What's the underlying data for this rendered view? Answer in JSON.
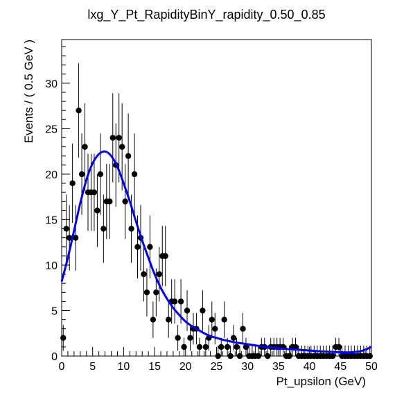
{
  "chart_data": {
    "type": "scatter",
    "title": "lxg_Y_Pt_RapidityBinY_rapidity_0.50_0.85",
    "xlabel": "Pt_upsilon (GeV)",
    "ylabel": "Events / ( 0.5 GeV )",
    "xlim": [
      0,
      50
    ],
    "ylim": [
      0,
      34.8
    ],
    "xticks": [
      0,
      5,
      10,
      15,
      20,
      25,
      30,
      35,
      40,
      45,
      50
    ],
    "yticks": [
      0,
      5,
      10,
      15,
      20,
      25,
      30
    ],
    "grid": false,
    "legend": "none",
    "colors": {
      "points": "#000000",
      "fit": "#0000ff"
    },
    "series": [
      {
        "kind": "points-with-errors",
        "x": [
          0.25,
          0.75,
          1.25,
          1.75,
          2.25,
          2.75,
          3.25,
          3.75,
          4.25,
          4.75,
          5.25,
          5.75,
          6.25,
          6.75,
          7.25,
          7.75,
          8.25,
          8.75,
          9.25,
          9.75,
          10.25,
          10.75,
          11.25,
          11.75,
          12.25,
          12.75,
          13.25,
          13.75,
          14.25,
          14.75,
          15.25,
          15.75,
          16.25,
          16.75,
          17.25,
          17.75,
          18.25,
          18.75,
          19.25,
          19.75,
          20.25,
          20.75,
          21.25,
          21.75,
          22.25,
          22.75,
          23.25,
          23.75,
          24.25,
          24.75,
          25.25,
          25.75,
          26.25,
          26.75,
          27.25,
          27.75,
          28.25,
          28.75,
          29.25,
          29.75,
          30.25,
          30.75,
          31.25,
          31.75,
          32.25,
          32.75,
          33.25,
          33.75,
          34.25,
          34.75,
          35.25,
          35.75,
          36.25,
          36.75,
          37.25,
          37.75,
          38.25,
          38.75,
          39.25,
          39.75,
          40.25,
          40.75,
          41.25,
          41.75,
          42.25,
          42.75,
          43.25,
          43.75,
          44.25,
          44.75,
          45.25,
          45.75,
          46.25,
          46.75,
          47.25,
          47.75,
          48.25,
          48.75,
          49.25,
          49.75
        ],
        "y": [
          2,
          14,
          13,
          19,
          13,
          27,
          20,
          23,
          18,
          18,
          18,
          16,
          20,
          14,
          17,
          17,
          24,
          21,
          24,
          23,
          17,
          22,
          14,
          20,
          12,
          13,
          9,
          7,
          12,
          4,
          7,
          9,
          11,
          11,
          4,
          6,
          6,
          2,
          6,
          1,
          5,
          2,
          3,
          3,
          1,
          5,
          1,
          2,
          4,
          3,
          0,
          1,
          4,
          1,
          0,
          2,
          1,
          0,
          3,
          1,
          0,
          0,
          0,
          0,
          1,
          1,
          0,
          1,
          1,
          1,
          1,
          1,
          0,
          0,
          1,
          1,
          0,
          0,
          0,
          0,
          0,
          0,
          0,
          0,
          0,
          0,
          0,
          0,
          1,
          1,
          0,
          0,
          0,
          0,
          0,
          0,
          0,
          0,
          0,
          0
        ]
      },
      {
        "kind": "fit-curve",
        "x": [
          0,
          1,
          2,
          3,
          4,
          5,
          6,
          7,
          8,
          9,
          10,
          11,
          12,
          13,
          14,
          15,
          16,
          17,
          18,
          19,
          20,
          21,
          22,
          23,
          24,
          25,
          26,
          27,
          28,
          29,
          30,
          32,
          34,
          36,
          38,
          40,
          42,
          44,
          46,
          48,
          49,
          50
        ],
        "y": [
          8.2,
          10.8,
          13.8,
          16.8,
          19.4,
          21.2,
          22.2,
          22.5,
          22.0,
          20.8,
          19.0,
          17.0,
          14.8,
          12.7,
          10.8,
          9.0,
          7.5,
          6.3,
          5.3,
          4.5,
          3.8,
          3.3,
          2.9,
          2.5,
          2.2,
          2.0,
          1.8,
          1.65,
          1.5,
          1.4,
          1.3,
          1.1,
          0.95,
          0.8,
          0.7,
          0.6,
          0.5,
          0.45,
          0.4,
          0.5,
          0.7,
          1.0
        ]
      }
    ]
  }
}
